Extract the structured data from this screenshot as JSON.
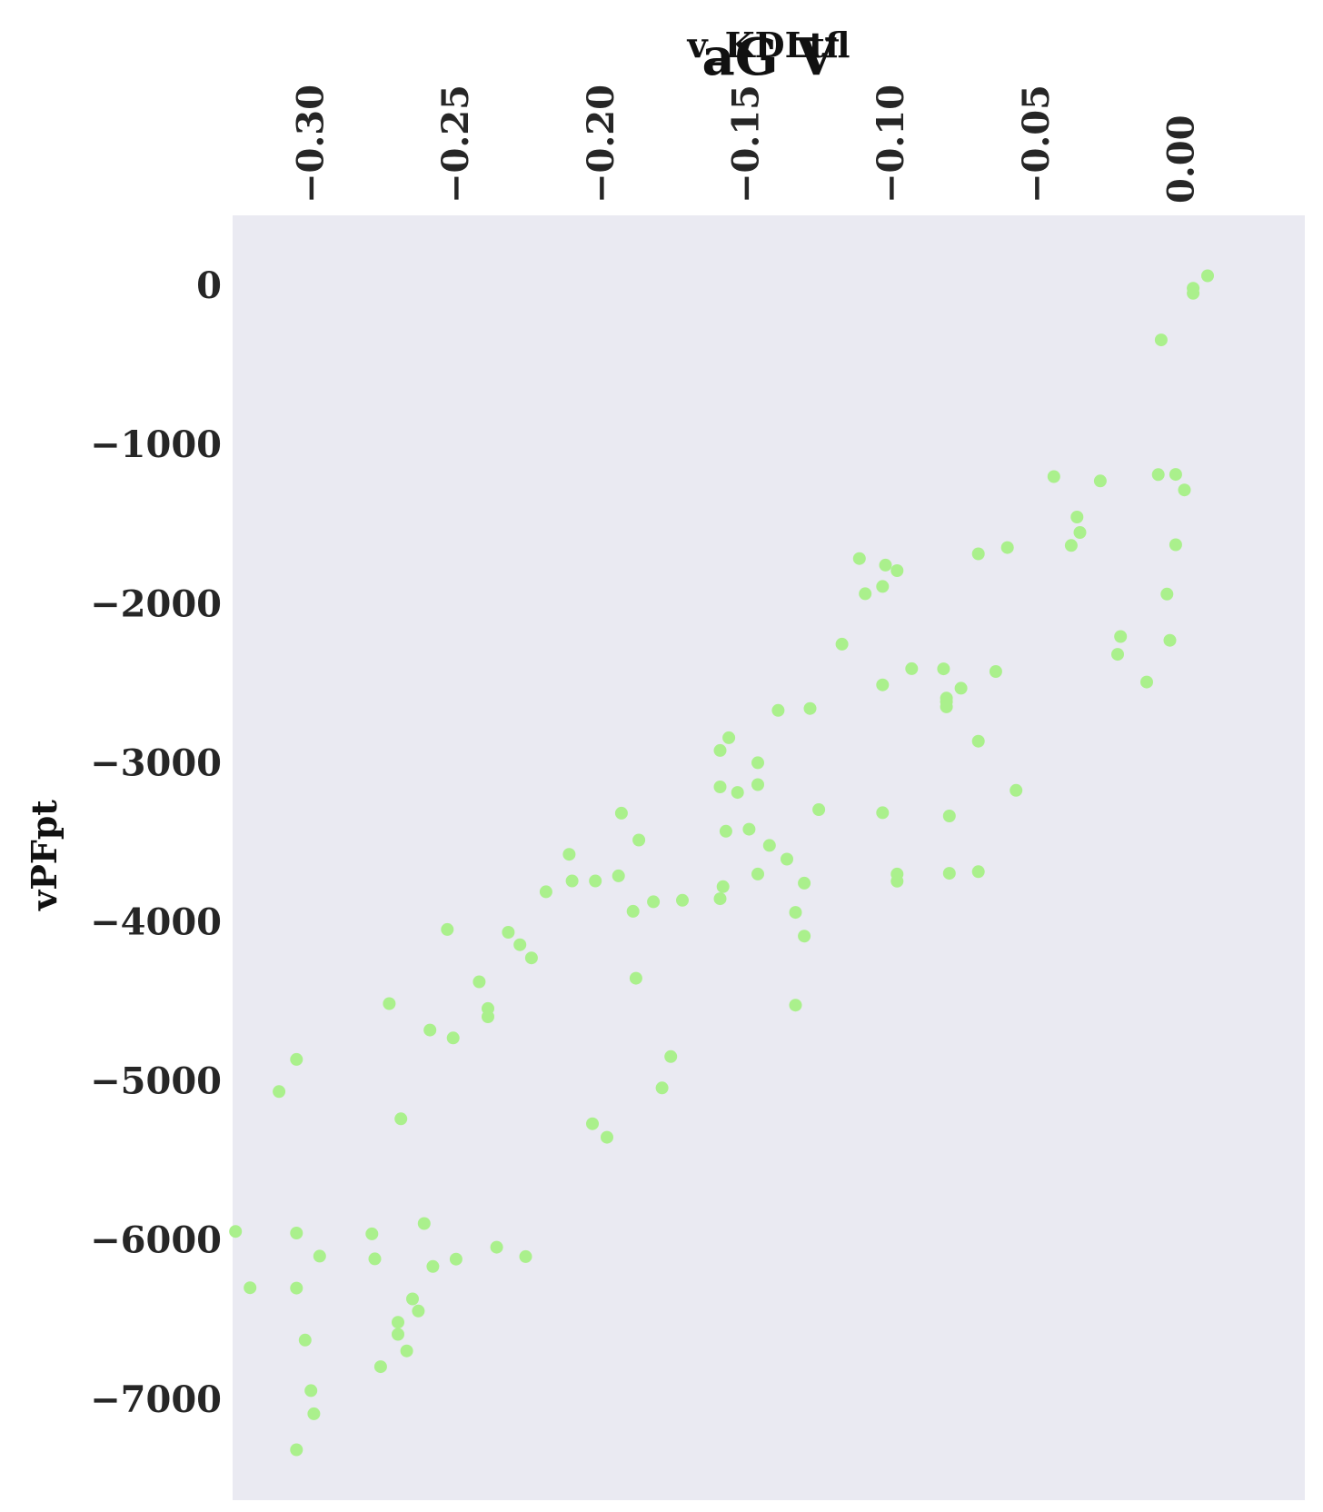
{
  "chart_data": {
    "type": "scatter",
    "title": "aG V",
    "xlabel": "v_KDLtfl",
    "ylabel": "vPFpt",
    "x_axis_position": "top",
    "x_tick_labels": [
      "−0.30",
      "−0.25",
      "−0.20",
      "−0.15",
      "−0.10",
      "−0.05",
      "0.00"
    ],
    "x_ticks": [
      -0.3,
      -0.25,
      -0.2,
      -0.15,
      -0.1,
      -0.05,
      0.0
    ],
    "y_tick_labels": [
      "0",
      "−1000",
      "−2000",
      "−3000",
      "−4000",
      "−5000",
      "−6000",
      "−7000"
    ],
    "y_ticks": [
      0,
      -1000,
      -2000,
      -3000,
      -4000,
      -5000,
      -6000,
      -7000
    ],
    "xlim": [
      -0.328,
      0.0415
    ],
    "ylim": [
      -7635,
      440
    ],
    "grid": false,
    "colors": {
      "point": "#aaf08c",
      "background": "#eaeaf2"
    },
    "series": [
      {
        "x": [
          -0.327,
          -0.322,
          -0.312,
          -0.306,
          -0.306,
          -0.306,
          -0.303,
          -0.301,
          -0.3,
          -0.306,
          -0.298,
          -0.28,
          -0.279,
          -0.277,
          -0.274,
          -0.271,
          -0.271,
          -0.27,
          -0.268,
          -0.266,
          -0.262,
          -0.264,
          -0.26,
          -0.259,
          -0.254,
          -0.252,
          -0.251,
          -0.243,
          -0.24,
          -0.24,
          -0.237,
          -0.233,
          -0.229,
          -0.227,
          -0.225,
          -0.22,
          -0.212,
          -0.211,
          -0.204,
          -0.203,
          -0.199,
          -0.194,
          -0.195,
          -0.189,
          -0.19,
          -0.188,
          -0.183,
          -0.18,
          -0.177,
          -0.173,
          -0.16,
          -0.16,
          -0.16,
          -0.159,
          -0.158,
          -0.157,
          -0.154,
          -0.15,
          -0.147,
          -0.147,
          -0.147,
          -0.143,
          -0.14,
          -0.137,
          -0.134,
          -0.134,
          -0.131,
          -0.131,
          -0.129,
          -0.126,
          -0.118,
          -0.112,
          -0.11,
          -0.104,
          -0.104,
          -0.104,
          -0.103,
          -0.099,
          -0.099,
          -0.099,
          -0.094,
          -0.083,
          -0.082,
          -0.082,
          -0.082,
          -0.081,
          -0.081,
          -0.077,
          -0.071,
          -0.071,
          -0.071,
          -0.065,
          -0.061,
          -0.058,
          -0.045,
          -0.039,
          -0.037,
          -0.036,
          -0.029,
          -0.023,
          -0.022,
          -0.013,
          -0.009,
          -0.008,
          -0.006,
          -0.005,
          -0.003,
          -0.003,
          0.0,
          0.003,
          0.003,
          0.008
        ],
        "y": [
          -5946,
          -6300,
          -5067,
          -4865,
          -5956,
          -6302,
          -6629,
          -6946,
          -7092,
          -7318,
          -6101,
          -5961,
          -6118,
          -6796,
          -4514,
          -6517,
          -6593,
          -5238,
          -6697,
          -6370,
          -5896,
          -6446,
          -4680,
          -6166,
          -4048,
          -4730,
          -6120,
          -4377,
          -4545,
          -4597,
          -6045,
          -4066,
          -4144,
          -6104,
          -4227,
          -3811,
          -3576,
          -3743,
          -5269,
          -3743,
          -5354,
          -3317,
          -3711,
          -4355,
          -3934,
          -3486,
          -3874,
          -5044,
          -4847,
          -3865,
          -2923,
          -3152,
          -3855,
          -3779,
          -3431,
          -2843,
          -3187,
          -3418,
          -3000,
          -3700,
          -3138,
          -3520,
          -2671,
          -3606,
          -4524,
          -3941,
          -4090,
          -3757,
          -2659,
          -3295,
          -2255,
          -1717,
          -1938,
          -3314,
          -2511,
          -1892,
          -1758,
          -3700,
          -3745,
          -1793,
          -2409,
          -2410,
          -2649,
          -2594,
          -2617,
          -3335,
          -3695,
          -2532,
          -1687,
          -2865,
          -3685,
          -2427,
          -1648,
          -3174,
          -1202,
          -1635,
          -1456,
          -1553,
          -1229,
          -2319,
          -2207,
          -2493,
          -1189,
          -343,
          -1940,
          -2231,
          -1188,
          -1630,
          -1286,
          -18,
          -50,
          60
        ]
      }
    ]
  }
}
